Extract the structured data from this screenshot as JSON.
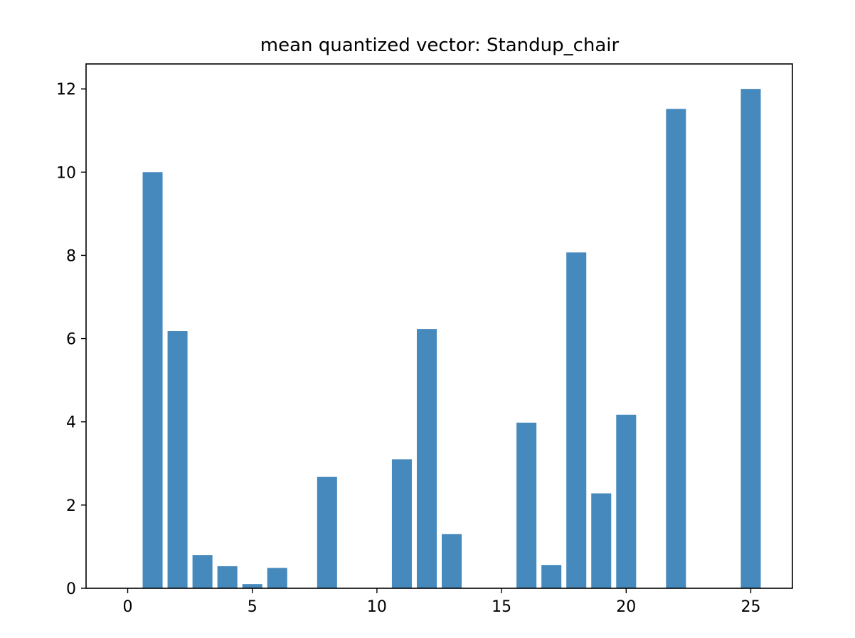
{
  "chart_data": {
    "type": "bar",
    "title": "mean quantized vector: Standup_chair",
    "xlabel": "",
    "ylabel": "",
    "x": [
      0,
      1,
      2,
      3,
      4,
      5,
      6,
      7,
      8,
      9,
      10,
      11,
      12,
      13,
      14,
      15,
      16,
      17,
      18,
      19,
      20,
      21,
      22,
      23,
      24,
      25
    ],
    "values": [
      0,
      10.0,
      6.18,
      0.8,
      0.53,
      0.1,
      0.49,
      0,
      2.68,
      0,
      0,
      3.1,
      6.23,
      1.3,
      0,
      0,
      3.98,
      0.56,
      8.07,
      2.28,
      4.17,
      0,
      11.52,
      0,
      0,
      12.0
    ],
    "xlim": [
      -1.67,
      26.67
    ],
    "ylim": [
      0,
      12.6
    ],
    "xticks": [
      0,
      5,
      10,
      15,
      20,
      25
    ],
    "yticks": [
      0,
      2,
      4,
      6,
      8,
      10,
      12
    ],
    "bar_color": "#4589bd",
    "grid": false,
    "legend": "none"
  }
}
